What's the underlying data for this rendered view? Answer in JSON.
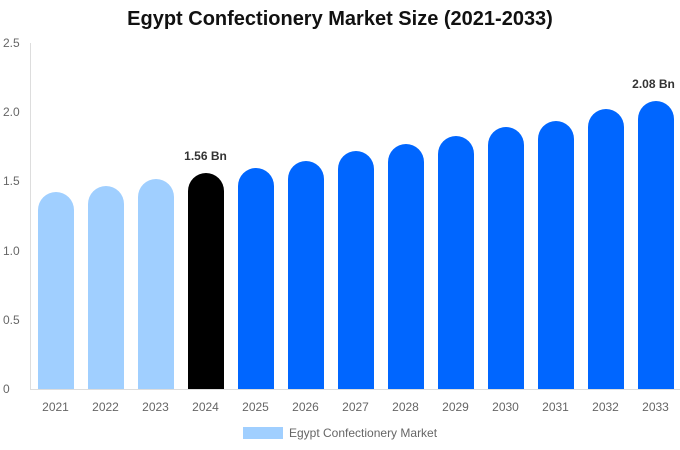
{
  "chart_data": {
    "type": "bar",
    "title": "Egypt Confectionery Market Size (2021-2033)",
    "xlabel": "",
    "ylabel": "",
    "ylim": [
      0,
      2.5
    ],
    "yticks": [
      "0",
      "0.5",
      "1.0",
      "1.5",
      "2.0",
      "2.5"
    ],
    "categories": [
      "2021",
      "2022",
      "2023",
      "2024",
      "2025",
      "2026",
      "2027",
      "2028",
      "2029",
      "2030",
      "2031",
      "2032",
      "2033"
    ],
    "series": [
      {
        "name": "Egypt Confectionery Market",
        "values": [
          1.42,
          1.47,
          1.52,
          1.56,
          1.6,
          1.65,
          1.72,
          1.77,
          1.83,
          1.89,
          1.94,
          2.02,
          2.08
        ]
      }
    ],
    "bar_colors": [
      "#a0cfff",
      "#a0cfff",
      "#a0cfff",
      "#000000",
      "#0066ff",
      "#0066ff",
      "#0066ff",
      "#0066ff",
      "#0066ff",
      "#0066ff",
      "#0066ff",
      "#0066ff",
      "#0066ff"
    ],
    "annotations": [
      {
        "category": "2024",
        "text": "1.56 Bn"
      },
      {
        "category": "2033",
        "text": "2.08 Bn"
      }
    ],
    "grid": false,
    "legend_position": "bottom"
  },
  "legend": {
    "label": "Egypt Confectionery Market",
    "color": "#a0cfff"
  }
}
